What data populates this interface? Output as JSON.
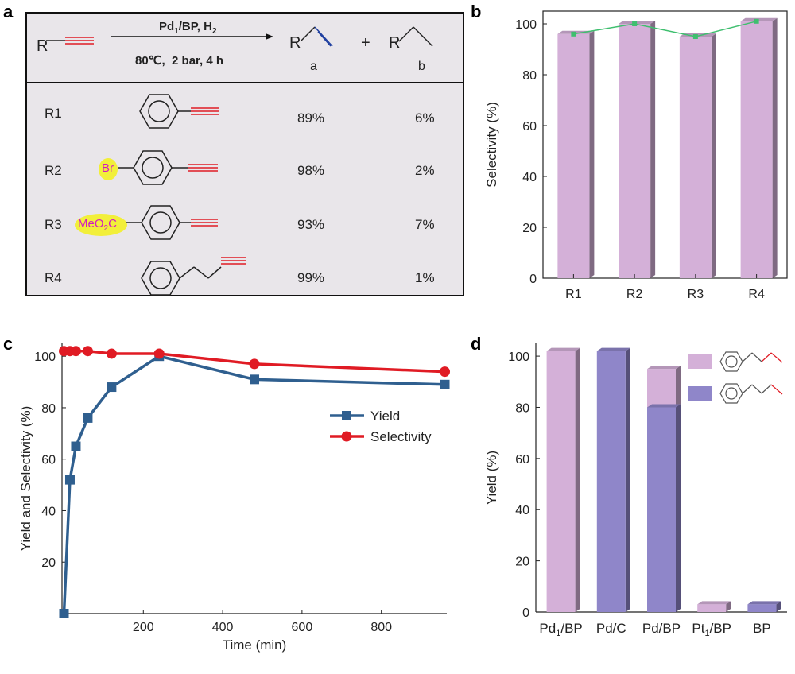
{
  "panels": {
    "a": "a",
    "b": "b",
    "c": "c",
    "d": "d"
  },
  "panel_a": {
    "reactant": "R",
    "cond_top": "Pd",
    "cond_top_sub": "1",
    "cond_top_rest": "/BP, H",
    "cond_top_sub2": "2",
    "cond_bottom": "80℃,  2 bar, 4 h",
    "prod_a_R": "R",
    "prod_a_label": "a",
    "plus": "+",
    "prod_b_R": "R",
    "prod_b_label": "b",
    "rows": [
      {
        "id": "R1",
        "sub": "",
        "a": "89%",
        "b": "6%"
      },
      {
        "id": "R2",
        "sub": "Br",
        "a": "98%",
        "b": "2%"
      },
      {
        "id": "R3",
        "sub": "MeO",
        "sub_2": "2",
        "sub_3": "C",
        "a": "93%",
        "b": "7%"
      },
      {
        "id": "R4",
        "sub": "",
        "a": "99%",
        "b": "1%"
      }
    ]
  },
  "colors": {
    "pink": "#d4b0d8",
    "purple": "#8f86c9",
    "yield_line": "#2f5f8f",
    "sel_line": "#e01b24",
    "green": "#3fbf6f",
    "red_bond": "#e01b24",
    "blue_bond": "#1f3fa0"
  },
  "chart_data": [
    {
      "panel": "b",
      "type": "bar",
      "categories": [
        "R1",
        "R2",
        "R3",
        "R4"
      ],
      "values": [
        96,
        100,
        95,
        101
      ],
      "line_values": [
        96,
        100,
        95,
        101
      ],
      "ylabel": "Selectivity (%)",
      "ylim": [
        0,
        105
      ],
      "yticks": [
        0,
        20,
        40,
        60,
        80,
        100
      ]
    },
    {
      "panel": "c",
      "type": "line",
      "xlabel": "Time (min)",
      "ylabel": "Yield and Selectivity (%)",
      "xlim": [
        -5,
        965
      ],
      "ylim": [
        0,
        105
      ],
      "xticks": [
        200,
        400,
        600,
        800
      ],
      "yticks": [
        20,
        40,
        60,
        80,
        100
      ],
      "series": [
        {
          "name": "Yield",
          "x": [
            0,
            15,
            30,
            60,
            120,
            240,
            480,
            960
          ],
          "y": [
            0,
            52,
            65,
            76,
            88,
            100,
            91,
            89
          ]
        },
        {
          "name": "Selectivity",
          "x": [
            0,
            15,
            30,
            60,
            120,
            240,
            480,
            960
          ],
          "y": [
            102,
            102,
            102,
            102,
            101,
            101,
            97,
            94
          ]
        }
      ]
    },
    {
      "panel": "d",
      "type": "bar",
      "categories": [
        "Pd1/BP",
        "Pd/C",
        "Pd/BP",
        "Pt1/BP",
        "BP"
      ],
      "category_labels": [
        {
          "main": "Pd",
          "sub": "1",
          "rest": "/BP"
        },
        {
          "main": "Pd/C",
          "sub": "",
          "rest": ""
        },
        {
          "main": "Pd/BP",
          "sub": "",
          "rest": ""
        },
        {
          "main": "Pt",
          "sub": "1",
          "rest": "/BP"
        },
        {
          "main": "BP",
          "sub": "",
          "rest": ""
        }
      ],
      "series": [
        {
          "name": "alkene",
          "values": [
            102,
            0,
            95,
            3,
            0
          ]
        },
        {
          "name": "alkane",
          "values": [
            0,
            102,
            80,
            0,
            3
          ]
        }
      ],
      "ylabel": "Yield (%)",
      "ylim": [
        0,
        105
      ],
      "yticks": [
        0,
        20,
        40,
        60,
        80,
        100
      ]
    }
  ]
}
